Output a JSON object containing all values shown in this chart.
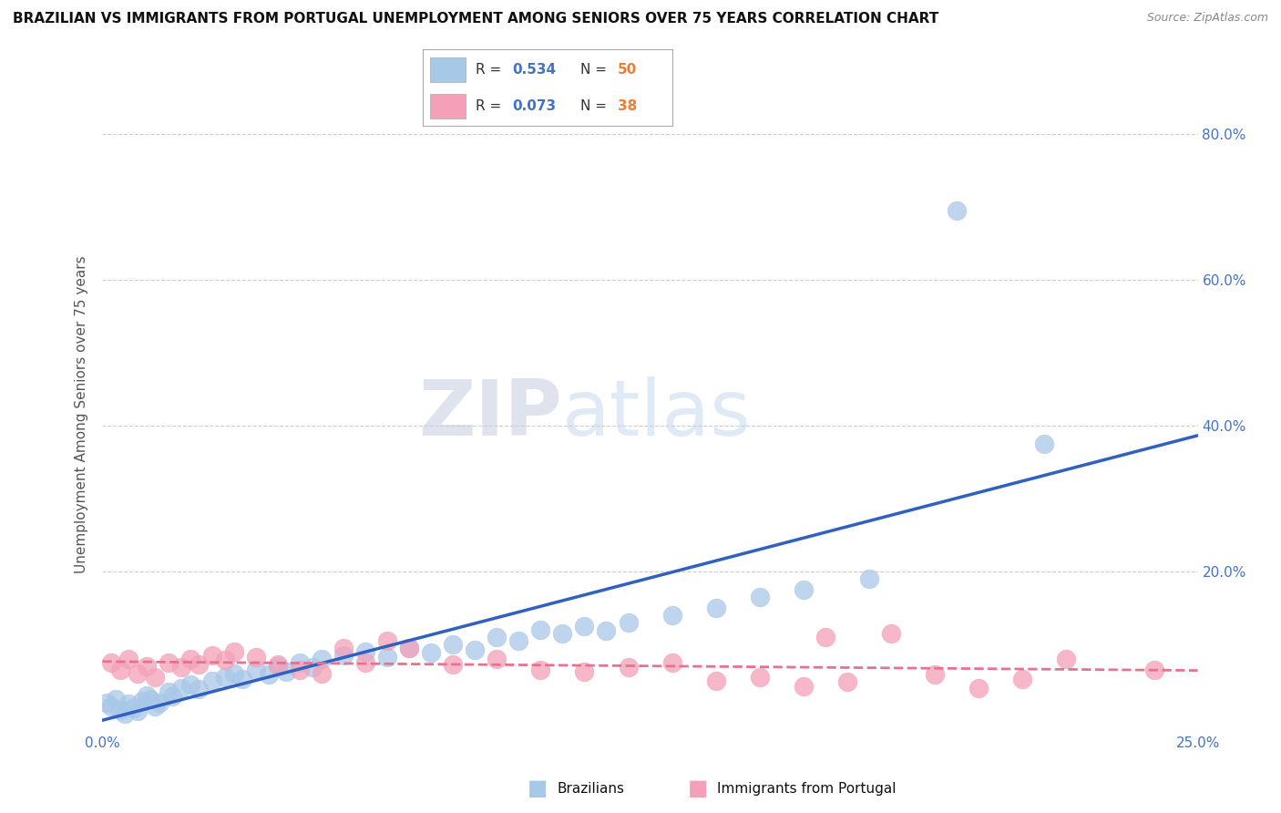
{
  "title": "BRAZILIAN VS IMMIGRANTS FROM PORTUGAL UNEMPLOYMENT AMONG SENIORS OVER 75 YEARS CORRELATION CHART",
  "source": "Source: ZipAtlas.com",
  "ylabel": "Unemployment Among Seniors over 75 years",
  "xlim": [
    0.0,
    0.25
  ],
  "ylim": [
    -0.02,
    0.85
  ],
  "xticks": [
    0.0,
    0.05,
    0.1,
    0.15,
    0.2,
    0.25
  ],
  "yticks": [
    0.2,
    0.4,
    0.6,
    0.8
  ],
  "xtick_labels": [
    "0.0%",
    "",
    "",
    "",
    "",
    "25.0%"
  ],
  "right_ytick_labels": [
    "20.0%",
    "40.0%",
    "60.0%",
    "80.0%"
  ],
  "blue_color": "#a8c8e8",
  "pink_color": "#f4a0b8",
  "blue_line_color": "#3060c0",
  "pink_line_color": "#e87090",
  "legend_r_color": "#4472c4",
  "legend_n_color": "#ed7d31",
  "watermark_zip": "ZIP",
  "watermark_atlas": "atlas",
  "background_color": "#ffffff",
  "grid_color": "#cccccc",
  "brazilians_x": [
    0.001,
    0.002,
    0.003,
    0.004,
    0.005,
    0.006,
    0.007,
    0.008,
    0.009,
    0.01,
    0.011,
    0.012,
    0.013,
    0.015,
    0.016,
    0.018,
    0.02,
    0.022,
    0.025,
    0.028,
    0.03,
    0.032,
    0.035,
    0.038,
    0.04,
    0.042,
    0.045,
    0.048,
    0.05,
    0.055,
    0.06,
    0.065,
    0.07,
    0.075,
    0.08,
    0.085,
    0.09,
    0.095,
    0.1,
    0.105,
    0.11,
    0.115,
    0.12,
    0.13,
    0.14,
    0.15,
    0.16,
    0.175,
    0.195,
    0.215
  ],
  "brazilians_y": [
    0.02,
    0.015,
    0.025,
    0.01,
    0.005,
    0.018,
    0.012,
    0.008,
    0.022,
    0.03,
    0.025,
    0.015,
    0.02,
    0.035,
    0.028,
    0.04,
    0.045,
    0.038,
    0.05,
    0.055,
    0.06,
    0.052,
    0.065,
    0.058,
    0.07,
    0.062,
    0.075,
    0.068,
    0.08,
    0.085,
    0.09,
    0.082,
    0.095,
    0.088,
    0.1,
    0.092,
    0.11,
    0.105,
    0.12,
    0.115,
    0.125,
    0.118,
    0.13,
    0.14,
    0.15,
    0.165,
    0.175,
    0.19,
    0.695,
    0.375
  ],
  "portugal_x": [
    0.002,
    0.004,
    0.006,
    0.008,
    0.01,
    0.012,
    0.015,
    0.018,
    0.02,
    0.022,
    0.025,
    0.028,
    0.03,
    0.035,
    0.04,
    0.045,
    0.05,
    0.055,
    0.06,
    0.065,
    0.07,
    0.08,
    0.09,
    0.1,
    0.11,
    0.12,
    0.13,
    0.14,
    0.15,
    0.16,
    0.165,
    0.17,
    0.18,
    0.19,
    0.2,
    0.21,
    0.22,
    0.24
  ],
  "portugal_y": [
    0.075,
    0.065,
    0.08,
    0.06,
    0.07,
    0.055,
    0.075,
    0.068,
    0.08,
    0.072,
    0.085,
    0.078,
    0.09,
    0.082,
    0.072,
    0.065,
    0.06,
    0.095,
    0.075,
    0.105,
    0.095,
    0.072,
    0.08,
    0.065,
    0.062,
    0.068,
    0.075,
    0.05,
    0.055,
    0.042,
    0.11,
    0.048,
    0.115,
    0.058,
    0.04,
    0.052,
    0.08,
    0.065
  ]
}
